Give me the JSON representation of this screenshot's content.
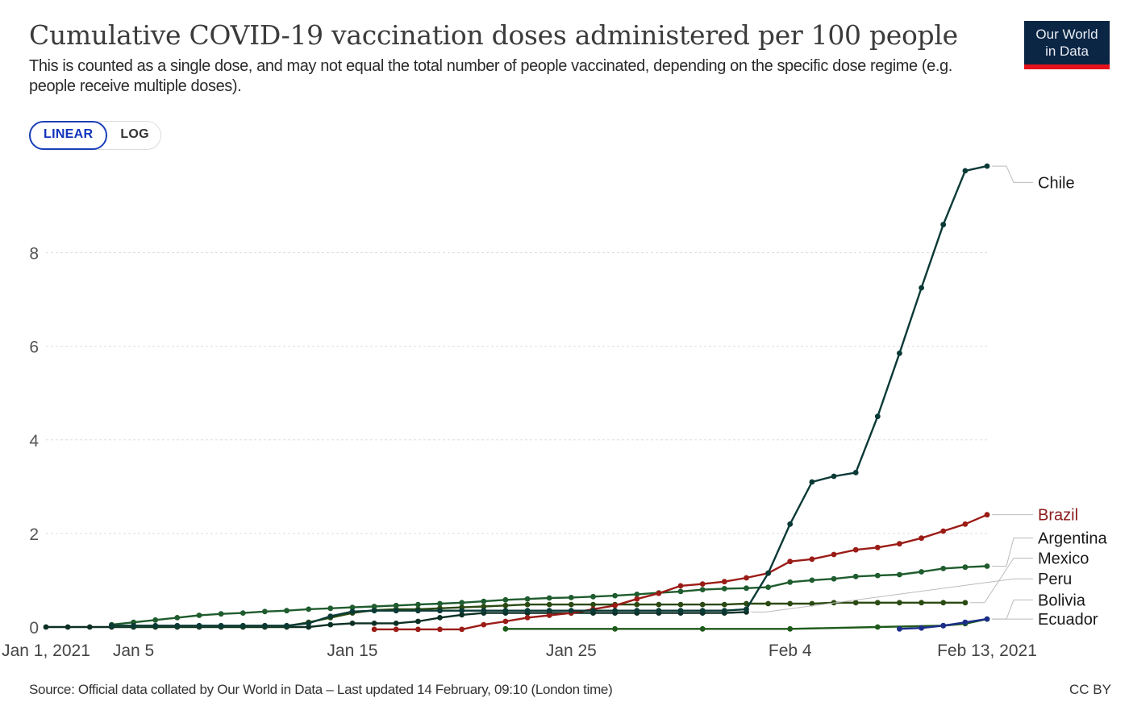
{
  "chart_data": {
    "type": "line",
    "title": "Cumulative COVID-19 vaccination doses administered per 100 people",
    "subtitle": "This is counted as a single dose, and may not equal the total number of people vaccinated, depending on the specific dose regime (e.g. people receive multiple doses).",
    "scale_options": [
      "LINEAR",
      "LOG"
    ],
    "selected_scale": "LINEAR",
    "x_range": [
      0,
      43
    ],
    "ylim": [
      0,
      9.8
    ],
    "y_ticks": [
      0,
      2,
      4,
      6,
      8
    ],
    "x_ticks": [
      {
        "day": 0,
        "label": "Jan 1, 2021"
      },
      {
        "day": 4,
        "label": "Jan 5"
      },
      {
        "day": 14,
        "label": "Jan 15"
      },
      {
        "day": 24,
        "label": "Jan 25"
      },
      {
        "day": 34,
        "label": "Feb 4"
      },
      {
        "day": 43,
        "label": "Feb 13, 2021"
      }
    ],
    "series": [
      {
        "name": "Chile",
        "color": "#0a3a36",
        "points": [
          [
            3,
            0.03
          ],
          [
            4,
            0.03
          ],
          [
            5,
            0.03
          ],
          [
            6,
            0.03
          ],
          [
            7,
            0.03
          ],
          [
            8,
            0.03
          ],
          [
            9,
            0.03
          ],
          [
            10,
            0.03
          ],
          [
            11,
            0.03
          ],
          [
            12,
            0.08
          ],
          [
            13,
            0.23
          ],
          [
            14,
            0.33
          ],
          [
            15,
            0.35
          ],
          [
            16,
            0.35
          ],
          [
            17,
            0.35
          ],
          [
            18,
            0.35
          ],
          [
            19,
            0.35
          ],
          [
            20,
            0.35
          ],
          [
            21,
            0.35
          ],
          [
            22,
            0.35
          ],
          [
            23,
            0.35
          ],
          [
            24,
            0.35
          ],
          [
            25,
            0.35
          ],
          [
            26,
            0.35
          ],
          [
            27,
            0.35
          ],
          [
            28,
            0.35
          ],
          [
            29,
            0.35
          ],
          [
            30,
            0.35
          ],
          [
            31,
            0.35
          ],
          [
            32,
            0.38
          ],
          [
            33,
            1.15
          ],
          [
            34,
            2.2
          ],
          [
            35,
            3.1
          ],
          [
            36,
            3.22
          ],
          [
            37,
            3.3
          ],
          [
            38,
            4.5
          ],
          [
            39,
            5.85
          ],
          [
            40,
            7.25
          ],
          [
            41,
            8.6
          ],
          [
            42,
            9.75
          ],
          [
            43,
            9.85
          ]
        ]
      },
      {
        "name": "Brazil",
        "color": "#9b1c17",
        "points": [
          [
            15,
            -0.05
          ],
          [
            16,
            -0.05
          ],
          [
            17,
            -0.05
          ],
          [
            18,
            -0.05
          ],
          [
            19,
            -0.05
          ],
          [
            20,
            0.05
          ],
          [
            21,
            0.12
          ],
          [
            22,
            0.2
          ],
          [
            23,
            0.25
          ],
          [
            24,
            0.3
          ],
          [
            25,
            0.38
          ],
          [
            26,
            0.46
          ],
          [
            27,
            0.6
          ],
          [
            28,
            0.72
          ],
          [
            29,
            0.88
          ],
          [
            30,
            0.92
          ],
          [
            31,
            0.97
          ],
          [
            32,
            1.05
          ],
          [
            33,
            1.15
          ],
          [
            34,
            1.4
          ],
          [
            35,
            1.45
          ],
          [
            36,
            1.55
          ],
          [
            37,
            1.65
          ],
          [
            38,
            1.7
          ],
          [
            39,
            1.78
          ],
          [
            40,
            1.9
          ],
          [
            41,
            2.05
          ],
          [
            42,
            2.2
          ],
          [
            43,
            2.4
          ]
        ]
      },
      {
        "name": "Argentina",
        "color": "#1f5c2e",
        "points": [
          [
            3,
            0.05
          ],
          [
            4,
            0.1
          ],
          [
            5,
            0.15
          ],
          [
            6,
            0.2
          ],
          [
            7,
            0.25
          ],
          [
            8,
            0.28
          ],
          [
            9,
            0.3
          ],
          [
            10,
            0.33
          ],
          [
            11,
            0.35
          ],
          [
            12,
            0.38
          ],
          [
            13,
            0.4
          ],
          [
            14,
            0.42
          ],
          [
            15,
            0.44
          ],
          [
            16,
            0.46
          ],
          [
            17,
            0.48
          ],
          [
            18,
            0.5
          ],
          [
            19,
            0.52
          ],
          [
            20,
            0.55
          ],
          [
            21,
            0.58
          ],
          [
            22,
            0.6
          ],
          [
            23,
            0.62
          ],
          [
            24,
            0.63
          ],
          [
            25,
            0.65
          ],
          [
            26,
            0.67
          ],
          [
            27,
            0.7
          ],
          [
            28,
            0.73
          ],
          [
            29,
            0.76
          ],
          [
            30,
            0.8
          ],
          [
            31,
            0.82
          ],
          [
            32,
            0.83
          ],
          [
            33,
            0.85
          ],
          [
            34,
            0.96
          ],
          [
            35,
            1.0
          ],
          [
            36,
            1.03
          ],
          [
            37,
            1.08
          ],
          [
            38,
            1.1
          ],
          [
            39,
            1.12
          ],
          [
            40,
            1.18
          ],
          [
            41,
            1.25
          ],
          [
            42,
            1.28
          ],
          [
            43,
            1.3
          ]
        ]
      },
      {
        "name": "Mexico",
        "color": "#2b4a12",
        "points": [
          [
            3,
            0.02
          ],
          [
            4,
            0.02
          ],
          [
            5,
            0.02
          ],
          [
            6,
            0.02
          ],
          [
            7,
            0.02
          ],
          [
            8,
            0.02
          ],
          [
            9,
            0.02
          ],
          [
            10,
            0.02
          ],
          [
            11,
            0.02
          ],
          [
            12,
            0.1
          ],
          [
            13,
            0.2
          ],
          [
            14,
            0.3
          ],
          [
            15,
            0.36
          ],
          [
            16,
            0.38
          ],
          [
            17,
            0.38
          ],
          [
            18,
            0.4
          ],
          [
            19,
            0.42
          ],
          [
            20,
            0.44
          ],
          [
            21,
            0.46
          ],
          [
            22,
            0.48
          ],
          [
            23,
            0.48
          ],
          [
            24,
            0.48
          ],
          [
            25,
            0.48
          ],
          [
            26,
            0.48
          ],
          [
            27,
            0.48
          ],
          [
            28,
            0.48
          ],
          [
            29,
            0.48
          ],
          [
            30,
            0.48
          ],
          [
            31,
            0.48
          ],
          [
            32,
            0.5
          ],
          [
            33,
            0.5
          ],
          [
            34,
            0.5
          ],
          [
            35,
            0.5
          ],
          [
            36,
            0.52
          ],
          [
            37,
            0.52
          ],
          [
            38,
            0.52
          ],
          [
            39,
            0.52
          ],
          [
            40,
            0.52
          ],
          [
            41,
            0.52
          ],
          [
            42,
            0.52
          ]
        ]
      },
      {
        "name": "Peru",
        "color": "#0c2f25",
        "points": [
          [
            0,
            0
          ],
          [
            1,
            0
          ],
          [
            2,
            0
          ],
          [
            3,
            0
          ],
          [
            4,
            0
          ],
          [
            5,
            0
          ],
          [
            6,
            0
          ],
          [
            7,
            0
          ],
          [
            8,
            0
          ],
          [
            9,
            0
          ],
          [
            10,
            0
          ],
          [
            11,
            0
          ],
          [
            12,
            0
          ],
          [
            13,
            0.05
          ],
          [
            14,
            0.08
          ],
          [
            15,
            0.08
          ],
          [
            16,
            0.08
          ],
          [
            17,
            0.12
          ],
          [
            18,
            0.2
          ],
          [
            19,
            0.26
          ],
          [
            20,
            0.3
          ],
          [
            21,
            0.3
          ],
          [
            22,
            0.3
          ],
          [
            23,
            0.3
          ],
          [
            24,
            0.3
          ],
          [
            25,
            0.3
          ],
          [
            26,
            0.3
          ],
          [
            27,
            0.3
          ],
          [
            28,
            0.3
          ],
          [
            29,
            0.3
          ],
          [
            30,
            0.3
          ],
          [
            31,
            0.3
          ],
          [
            32,
            0.32
          ]
        ]
      },
      {
        "name": "Bolivia",
        "color": "#1e5a1a",
        "points": [
          [
            21,
            -0.04
          ],
          [
            26,
            -0.04
          ],
          [
            30,
            -0.04
          ],
          [
            34,
            -0.04
          ],
          [
            38,
            0.0
          ],
          [
            41,
            0.03
          ],
          [
            42,
            0.07
          ],
          [
            43,
            0.17
          ]
        ]
      },
      {
        "name": "Ecuador",
        "color": "#1c2e8a",
        "points": [
          [
            39,
            -0.04
          ],
          [
            40,
            -0.02
          ],
          [
            41,
            0.03
          ],
          [
            42,
            0.1
          ],
          [
            43,
            0.17
          ]
        ]
      }
    ],
    "labels": [
      {
        "series": "Chile",
        "text": "Chile",
        "color": "#1a1a1a",
        "value": 9.5
      },
      {
        "series": "Brazil",
        "text": "Brazil",
        "color": "#8b1a1a",
        "value": 2.4
      },
      {
        "series": "Argentina",
        "text": "Argentina",
        "color": "#1a1a1a",
        "value": 1.9
      },
      {
        "series": "Mexico",
        "text": "Mexico",
        "color": "#1a1a1a",
        "value": 1.47
      },
      {
        "series": "Peru",
        "text": "Peru",
        "color": "#1a1a1a",
        "value": 1.03
      },
      {
        "series": "Bolivia",
        "text": "Bolivia",
        "color": "#1a1a1a",
        "value": 0.58
      },
      {
        "series": "Ecuador",
        "text": "Ecuador",
        "color": "#1a1a1a",
        "value": 0.17
      }
    ]
  },
  "logo": {
    "line1": "Our World",
    "line2": "in Data"
  },
  "footer": {
    "source": "Source: Official data collated by Our World in Data – Last updated 14 February, 09:10 (London time)",
    "license": "CC BY"
  }
}
